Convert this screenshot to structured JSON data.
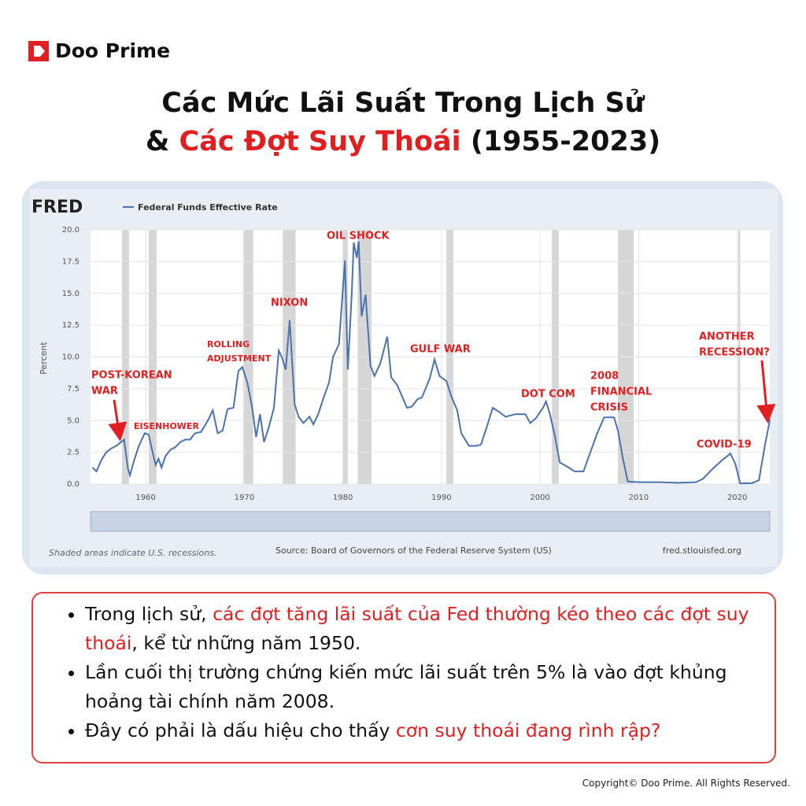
{
  "header": {
    "brand": "Doo Prime",
    "title_line1": "Các Mức Lãi Suất Trong Lịch Sử",
    "title_line2": [
      {
        "text": "& ",
        "color": "#111111"
      },
      {
        "text": "Các Đợt Suy Thoái",
        "color": "#e02020"
      },
      {
        "text": " (1955-2023)",
        "color": "#111111"
      }
    ]
  },
  "chart_data": {
    "type": "line",
    "logo": "FRED",
    "ylabel": "Percent",
    "x": [
      1954.6,
      1955.0,
      1955.5,
      1956.0,
      1956.5,
      1957.0,
      1957.5,
      1957.8,
      1958.2,
      1958.4,
      1958.8,
      1959.3,
      1959.9,
      1960.3,
      1960.7,
      1961.0,
      1961.3,
      1961.6,
      1962.0,
      1962.5,
      1963.0,
      1963.5,
      1964.0,
      1964.5,
      1965.0,
      1965.6,
      1966.3,
      1966.8,
      1967.3,
      1967.8,
      1968.3,
      1968.9,
      1969.4,
      1969.8,
      1970.3,
      1970.8,
      1971.2,
      1971.6,
      1972.0,
      1972.5,
      1973.0,
      1973.5,
      1973.8,
      1974.2,
      1974.6,
      1975.1,
      1975.5,
      1976.0,
      1976.6,
      1977.0,
      1977.5,
      1978.0,
      1978.6,
      1979.0,
      1979.6,
      1980.2,
      1980.5,
      1980.9,
      1981.1,
      1981.4,
      1981.6,
      1981.9,
      1982.3,
      1982.8,
      1983.2,
      1983.8,
      1984.5,
      1984.9,
      1985.5,
      1986.5,
      1987.0,
      1987.6,
      1988.0,
      1988.8,
      1989.3,
      1989.8,
      1990.5,
      1991.0,
      1991.6,
      1992.0,
      1992.8,
      1993.5,
      1994.0,
      1994.6,
      1995.2,
      1995.8,
      1996.5,
      1997.5,
      1998.5,
      1999.0,
      1999.6,
      2000.3,
      2000.6,
      2001.0,
      2001.5,
      2002.0,
      2002.9,
      2003.5,
      2004.4,
      2005.0,
      2005.8,
      2006.5,
      2007.5,
      2007.9,
      2008.4,
      2008.9,
      2010.0,
      2012.0,
      2014.0,
      2015.8,
      2016.5,
      2017.5,
      2018.5,
      2019.3,
      2019.8,
      2020.3,
      2021.5,
      2022.2,
      2022.8,
      2023.2,
      2023.3
    ],
    "series": [
      {
        "name": "Federal Funds Effective Rate",
        "color": "#4a72ae",
        "values": [
          1.3,
          1.0,
          1.9,
          2.5,
          2.8,
          3.0,
          3.3,
          3.5,
          1.2,
          0.7,
          1.8,
          3.0,
          4.0,
          3.9,
          2.5,
          1.5,
          2.0,
          1.3,
          2.2,
          2.7,
          2.9,
          3.3,
          3.5,
          3.5,
          4.0,
          4.1,
          5.0,
          5.8,
          4.0,
          4.2,
          5.9,
          6.0,
          8.9,
          9.2,
          8.0,
          6.0,
          3.7,
          5.5,
          3.3,
          4.5,
          6.0,
          10.5,
          10.0,
          9.0,
          12.9,
          6.3,
          5.3,
          4.8,
          5.3,
          4.7,
          5.5,
          6.7,
          8.0,
          10.0,
          11.0,
          17.6,
          9.0,
          15.0,
          19.0,
          17.8,
          19.1,
          13.2,
          14.9,
          9.3,
          8.5,
          9.5,
          11.6,
          8.4,
          7.8,
          6.0,
          6.1,
          6.7,
          6.8,
          8.3,
          9.8,
          8.5,
          8.1,
          6.9,
          5.8,
          4.0,
          3.0,
          3.0,
          3.1,
          4.5,
          6.0,
          5.7,
          5.3,
          5.5,
          5.5,
          4.8,
          5.2,
          6.0,
          6.5,
          5.5,
          3.8,
          1.7,
          1.3,
          1.0,
          1.0,
          2.3,
          4.0,
          5.25,
          5.25,
          4.2,
          2.0,
          0.2,
          0.15,
          0.15,
          0.1,
          0.15,
          0.4,
          1.2,
          1.9,
          2.4,
          1.6,
          0.05,
          0.08,
          0.3,
          3.0,
          4.6,
          5.1
        ]
      }
    ],
    "recessions": [
      [
        1957.6,
        1958.3
      ],
      [
        1960.3,
        1961.1
      ],
      [
        1969.9,
        1970.9
      ],
      [
        1973.9,
        1975.2
      ],
      [
        1980.0,
        1980.5
      ],
      [
        1981.5,
        1982.9
      ],
      [
        1990.5,
        1991.2
      ],
      [
        2001.2,
        2001.9
      ],
      [
        2007.9,
        2009.5
      ],
      [
        2020.1,
        2020.3
      ]
    ],
    "xlim": [
      1954.4,
      2023.3
    ],
    "xticks": [
      1960,
      1970,
      1980,
      1990,
      2000,
      2010,
      2020
    ],
    "ylim": [
      0,
      20
    ],
    "yticks": [
      {
        "value": 0,
        "label": "0.0"
      },
      {
        "value": 2.5,
        "label": "2.5"
      },
      {
        "value": 5,
        "label": "5.0"
      },
      {
        "value": 7.5,
        "label": "7.5"
      },
      {
        "value": 10,
        "label": "10.0"
      },
      {
        "value": 12.5,
        "label": "12.5"
      },
      {
        "value": 15,
        "label": "15.0"
      },
      {
        "value": 17.5,
        "label": "17.5"
      },
      {
        "value": 20,
        "label": "20.0"
      }
    ],
    "grid": true,
    "annotations": [
      {
        "lines": [
          "POST-KOREAN",
          "WAR"
        ]
      },
      {
        "lines": [
          "EISENHOWER"
        ]
      },
      {
        "lines": [
          "ROLLING",
          "ADJUSTMENT"
        ]
      },
      {
        "lines": [
          "NIXON"
        ]
      },
      {
        "lines": [
          "OIL SHOCK"
        ]
      },
      {
        "lines": [
          "GULF WAR"
        ]
      },
      {
        "lines": [
          "DOT COM"
        ]
      },
      {
        "lines": [
          "2008",
          "FINANCIAL",
          "CRISIS"
        ]
      },
      {
        "lines": [
          "ANOTHER",
          "RECESSION?"
        ]
      },
      {
        "lines": [
          "COVID-19"
        ]
      }
    ],
    "note": "Shaded areas indicate U.S. recessions.",
    "source": "Source: Board of Governors of the Federal Reserve System (US)",
    "site": "fred.stlouisfed.org"
  },
  "bullets": [
    [
      {
        "text": "Trong lịch sử, ",
        "color": "#111111"
      },
      {
        "text": "các đợt tăng lãi suất của Fed thường kéo theo các đợt suy thoái",
        "color": "#e02020"
      },
      {
        "text": ", kể từ những năm 1950.",
        "color": "#111111"
      }
    ],
    [
      {
        "text": "Lần cuối thị trường chứng kiến mức lãi suất trên 5% là vào đợt khủng hoảng tài chính năm 2008.",
        "color": "#111111"
      }
    ],
    [
      {
        "text": "Đây có phải là dấu hiệu cho thấy ",
        "color": "#111111"
      },
      {
        "text": "cơn suy thoái đang rình rập?",
        "color": "#e02020"
      }
    ]
  ],
  "copyright": "Copyright© Doo Prime. All Rights Reserved."
}
